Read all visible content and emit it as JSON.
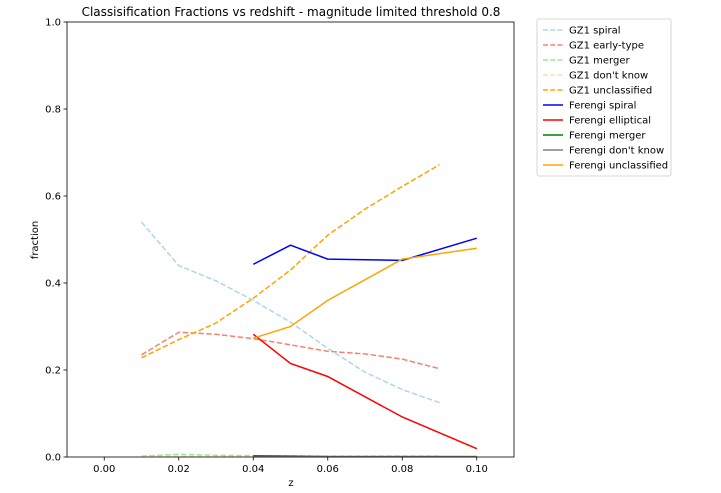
{
  "chart_data": {
    "type": "line",
    "title": "Classisification Fractions vs redshift - magnitude limited threshold 0.8",
    "xlabel": "z",
    "ylabel": "fraction",
    "xlim": [
      -0.01,
      0.11
    ],
    "ylim": [
      0.0,
      1.0
    ],
    "xticks": [
      0.0,
      0.02,
      0.04,
      0.06,
      0.08,
      0.1
    ],
    "xtick_labels": [
      "0.00",
      "0.02",
      "0.04",
      "0.06",
      "0.08",
      "0.10"
    ],
    "yticks": [
      0.0,
      0.2,
      0.4,
      0.6,
      0.8,
      1.0
    ],
    "ytick_labels": [
      "0.0",
      "0.2",
      "0.4",
      "0.6",
      "0.8",
      "1.0"
    ],
    "grid": false,
    "legend_position": "outside-right",
    "series": [
      {
        "name": "GZ1 spiral",
        "style": "dashed",
        "color": "#add8e6",
        "x": [
          0.01,
          0.02,
          0.03,
          0.04,
          0.05,
          0.06,
          0.07,
          0.08,
          0.09
        ],
        "y": [
          0.54,
          0.44,
          0.405,
          0.36,
          0.31,
          0.25,
          0.195,
          0.155,
          0.125
        ]
      },
      {
        "name": "GZ1 early-type",
        "style": "dashed",
        "color": "#fa8072",
        "x": [
          0.01,
          0.02,
          0.03,
          0.04,
          0.05,
          0.06,
          0.07,
          0.08,
          0.09
        ],
        "y": [
          0.235,
          0.287,
          0.282,
          0.272,
          0.258,
          0.243,
          0.237,
          0.225,
          0.203
        ]
      },
      {
        "name": "GZ1 merger",
        "style": "dashed",
        "color": "#90ee90",
        "x": [
          0.01,
          0.02,
          0.03,
          0.04,
          0.05,
          0.06,
          0.07,
          0.08,
          0.09
        ],
        "y": [
          0.002,
          0.006,
          0.004,
          0.003,
          0.003,
          0.002,
          0.002,
          0.002,
          0.002
        ]
      },
      {
        "name": "GZ1 don't know",
        "style": "dashed",
        "color": "#f5deb3",
        "x": [
          0.01,
          0.02,
          0.03,
          0.04,
          0.05,
          0.06,
          0.07,
          0.08,
          0.09
        ],
        "y": [
          0.001,
          0.001,
          0.001,
          0.001,
          0.001,
          0.001,
          0.001,
          0.001,
          0.001
        ]
      },
      {
        "name": "GZ1 unclassified",
        "style": "dashed",
        "color": "#ffa500",
        "x": [
          0.01,
          0.02,
          0.03,
          0.04,
          0.05,
          0.06,
          0.07,
          0.08,
          0.09
        ],
        "y": [
          0.228,
          0.27,
          0.308,
          0.365,
          0.43,
          0.51,
          0.57,
          0.622,
          0.672
        ]
      },
      {
        "name": "Ferengi spiral",
        "style": "solid",
        "color": "#0000ff",
        "x": [
          0.04,
          0.05,
          0.06,
          0.08,
          0.1
        ],
        "y": [
          0.443,
          0.487,
          0.455,
          0.452,
          0.503
        ]
      },
      {
        "name": "Ferengi elliptical",
        "style": "solid",
        "color": "#ff0000",
        "x": [
          0.04,
          0.05,
          0.06,
          0.08,
          0.1
        ],
        "y": [
          0.282,
          0.215,
          0.185,
          0.092,
          0.019
        ]
      },
      {
        "name": "Ferengi merger",
        "style": "solid",
        "color": "#008000",
        "x": [
          0.04,
          0.05,
          0.06,
          0.08,
          0.1
        ],
        "y": [
          0.003,
          0.002,
          0.001,
          0.001,
          0.001
        ]
      },
      {
        "name": "Ferengi don't know",
        "style": "solid",
        "color": "#808080",
        "x": [
          0.04,
          0.05,
          0.06,
          0.08,
          0.1
        ],
        "y": [
          0.001,
          0.001,
          0.001,
          0.001,
          0.001
        ]
      },
      {
        "name": "Ferengi unclassified",
        "style": "solid",
        "color": "#ffa500",
        "x": [
          0.04,
          0.05,
          0.06,
          0.08,
          0.1
        ],
        "y": [
          0.273,
          0.3,
          0.36,
          0.455,
          0.48
        ]
      }
    ]
  }
}
